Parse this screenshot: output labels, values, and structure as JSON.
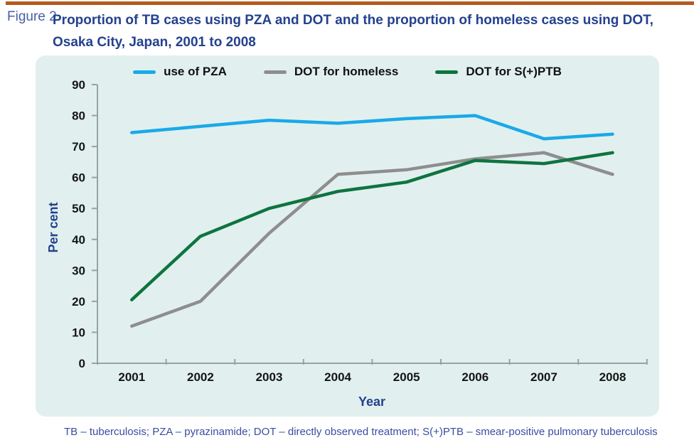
{
  "header": {
    "figure_label": "Figure 2.",
    "title": "Proportion of TB cases using PZA and DOT and the proportion of homeless cases using DOT, Osaka City, Japan, 2001 to 2008"
  },
  "footnote": "TB – tuberculosis; PZA – pyrazinamide; DOT – directly observed treatment; S(+)PTB – smear-positive pulmonary tuberculosis",
  "colors": {
    "top_rule": "#b45a1d",
    "title_navy": "#24418e",
    "figure_label_blue": "#4b5ea9",
    "footnote_blue": "#3a4da1",
    "panel_bg": "#e1f0ee",
    "axis_gray": "#98a3a1"
  },
  "chart_data": {
    "type": "line",
    "title": "Proportion of TB cases using PZA and DOT and the proportion of homeless cases using DOT, Osaka City, Japan, 2001 to 2008",
    "categories": [
      "2001",
      "2002",
      "2003",
      "2004",
      "2005",
      "2006",
      "2007",
      "2008"
    ],
    "series": [
      {
        "name": "use of PZA",
        "color": "#1aa9e8",
        "values": [
          74.5,
          76.5,
          78.5,
          77.5,
          79,
          80,
          72.5,
          74
        ]
      },
      {
        "name": "DOT for homeless",
        "color": "#8e8e8e",
        "values": [
          12,
          20,
          42,
          61,
          62.5,
          66,
          68,
          61
        ]
      },
      {
        "name": "DOT for S(+)PTB",
        "color": "#0e7440",
        "values": [
          20.5,
          41,
          50,
          55.5,
          58.5,
          65.5,
          64.5,
          68
        ]
      }
    ],
    "xlabel": "Year",
    "ylabel": "Per cent",
    "ylim": [
      0,
      90
    ],
    "ytick_step": 10,
    "yticks": [
      0,
      10,
      20,
      30,
      40,
      50,
      60,
      70,
      80,
      90
    ],
    "grid": false,
    "legend_position": "top"
  }
}
